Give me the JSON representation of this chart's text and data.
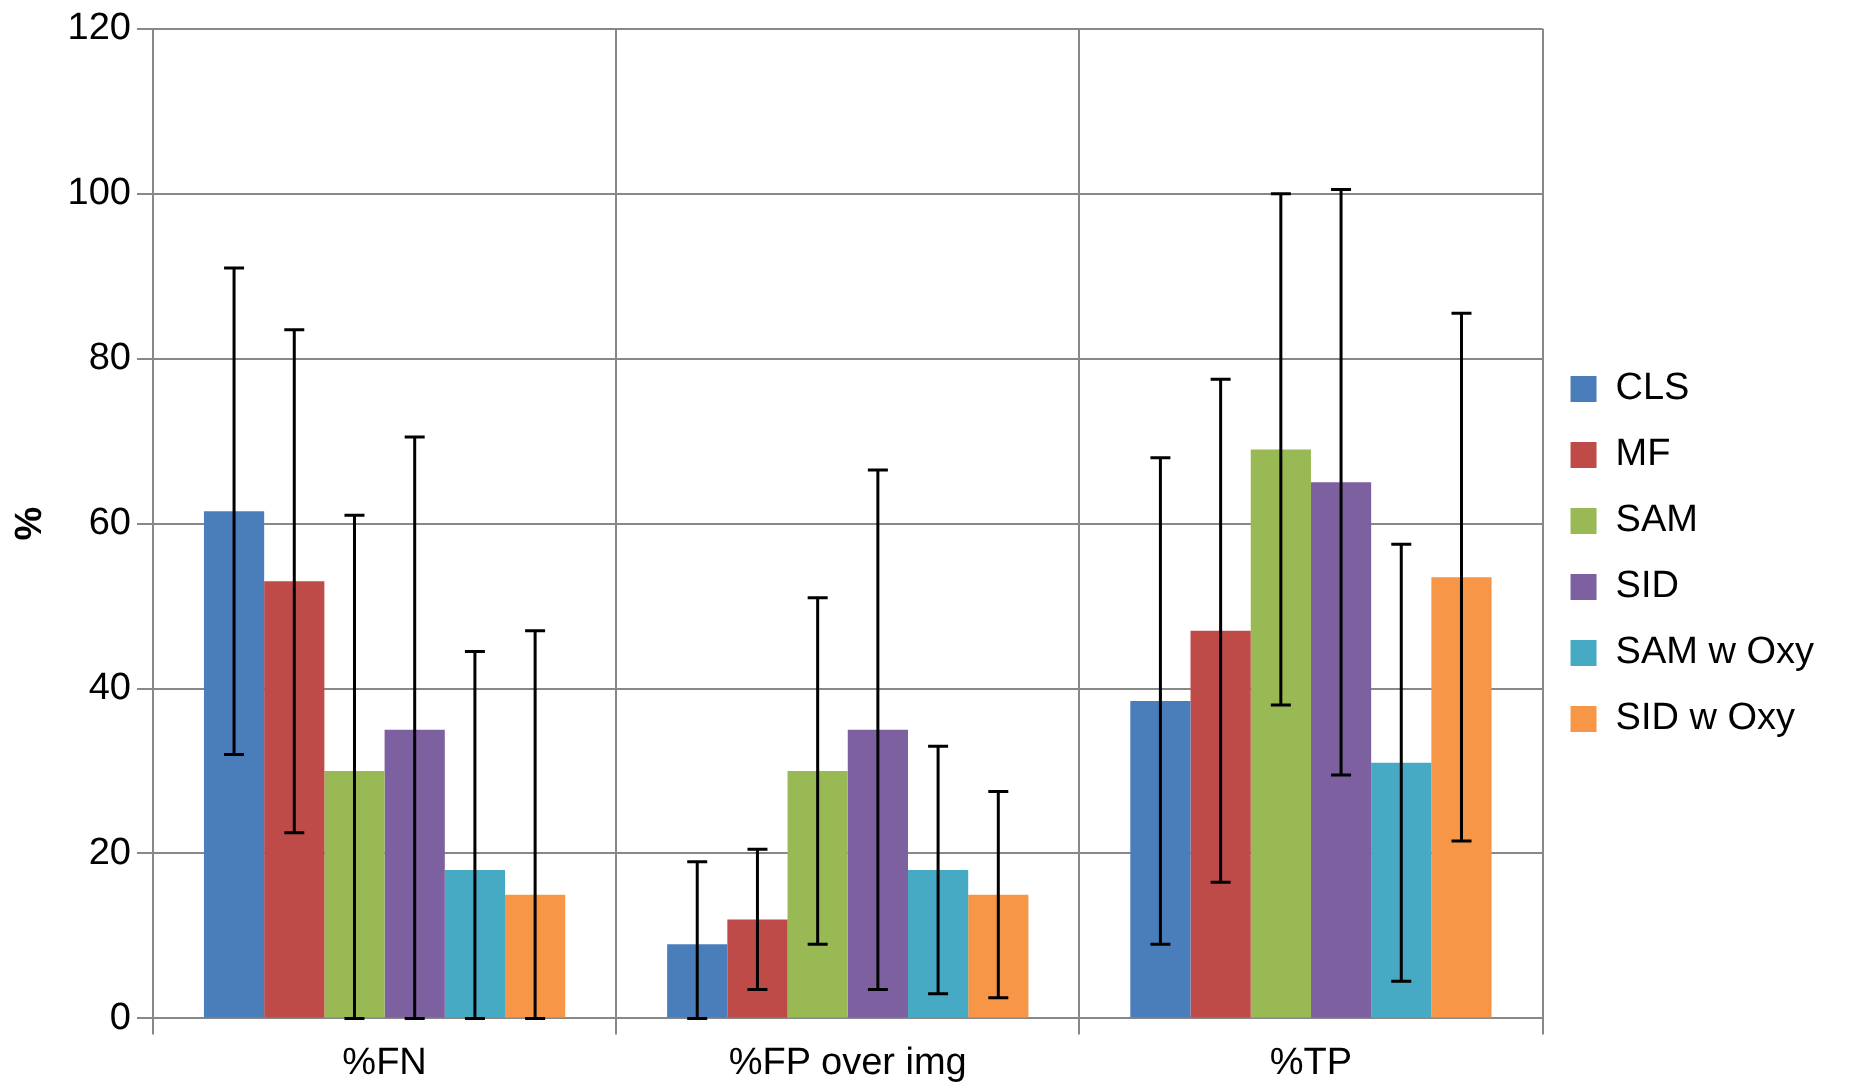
{
  "chart_data": {
    "type": "bar",
    "ylabel": "%",
    "categories": [
      "%FN",
      "%FP over img",
      "%TP"
    ],
    "series": [
      {
        "name": "CLS",
        "color": "#4a7ebb",
        "values": [
          61.5,
          9,
          38.5
        ],
        "errors": [
          29.5,
          [
            0,
            19
          ],
          29.5
        ]
      },
      {
        "name": "MF",
        "color": "#be4b48",
        "values": [
          53,
          12,
          47
        ],
        "errors": [
          30.5,
          8.5,
          30.5
        ]
      },
      {
        "name": "SAM",
        "color": "#98b954",
        "values": [
          30,
          30,
          69
        ],
        "errors": [
          [
            0,
            61
          ],
          21,
          31
        ]
      },
      {
        "name": "SID",
        "color": "#7d60a0",
        "values": [
          35,
          35,
          65
        ],
        "errors": [
          [
            0,
            70.5
          ],
          31.5,
          35.5
        ]
      },
      {
        "name": "SAM w Oxy",
        "color": "#46aac5",
        "values": [
          18,
          18,
          31
        ],
        "errors": [
          [
            0,
            44.5
          ],
          15,
          26.5
        ]
      },
      {
        "name": "SID w Oxy",
        "color": "#f79646",
        "values": [
          15,
          15,
          53.5
        ],
        "errors": [
          [
            0,
            47
          ],
          12.5,
          32
        ]
      }
    ],
    "ylim": [
      0,
      120
    ],
    "yticks": [
      0,
      20,
      40,
      60,
      80,
      100,
      120
    ],
    "grid": true,
    "legend": "right"
  }
}
